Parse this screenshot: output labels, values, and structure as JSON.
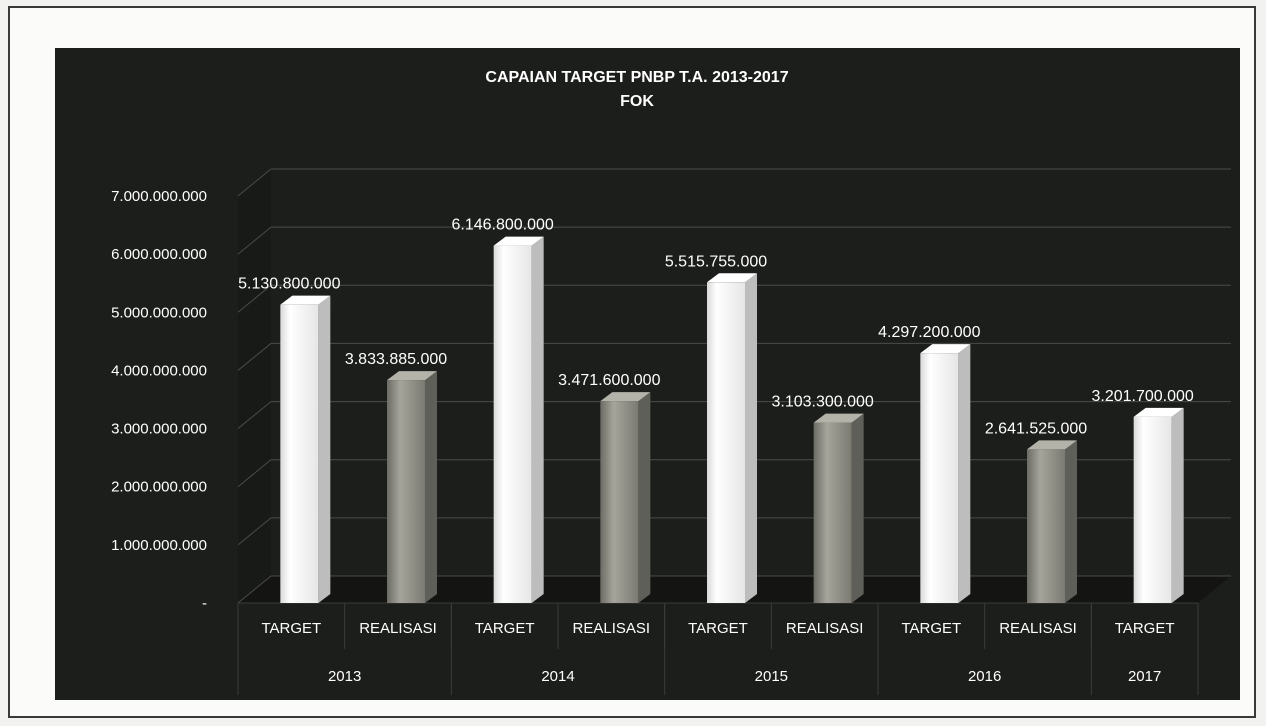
{
  "chart_data": {
    "type": "bar",
    "title": "CAPAIAN TARGET PNBP T.A. 2013-2017",
    "subtitle": "FOK",
    "xlabel": "",
    "ylabel": "",
    "ylim": [
      0,
      7000000000
    ],
    "yticks": [
      {
        "value": 0,
        "label": "-"
      },
      {
        "value": 1000000000,
        "label": "1.000.000.000"
      },
      {
        "value": 2000000000,
        "label": "2.000.000.000"
      },
      {
        "value": 3000000000,
        "label": "3.000.000.000"
      },
      {
        "value": 4000000000,
        "label": "4.000.000.000"
      },
      {
        "value": 5000000000,
        "label": "5.000.000.000"
      },
      {
        "value": 6000000000,
        "label": "6.000.000.000"
      },
      {
        "value": 7000000000,
        "label": "7.000.000.000"
      }
    ],
    "grid": true,
    "legend": "none",
    "style": "3d-column",
    "categories": [
      "TARGET",
      "REALISASI",
      "TARGET",
      "REALISASI",
      "TARGET",
      "REALISASI",
      "TARGET",
      "REALISASI",
      "TARGET"
    ],
    "groups": [
      {
        "label": "2013",
        "span": 2
      },
      {
        "label": "2014",
        "span": 2
      },
      {
        "label": "2015",
        "span": 2
      },
      {
        "label": "2016",
        "span": 2
      },
      {
        "label": "2017",
        "span": 1
      }
    ],
    "values": [
      5130800000,
      3833885000,
      6146800000,
      3471600000,
      5515755000,
      3103300000,
      4297200000,
      2641525000,
      3201700000
    ],
    "value_labels": [
      "5.130.800.000",
      "3.833.885.000",
      "6.146.800.000",
      "3.471.600.000",
      "5.515.755.000",
      "3.103.300.000",
      "4.297.200.000",
      "2.641.525.000",
      "3.201.700.000"
    ],
    "colors": {
      "background": "#1c1e1b",
      "target": "#f7f7f7",
      "realisasi": "#8e8e86",
      "text": "#ffffff",
      "grid": "#4a4c48"
    }
  }
}
